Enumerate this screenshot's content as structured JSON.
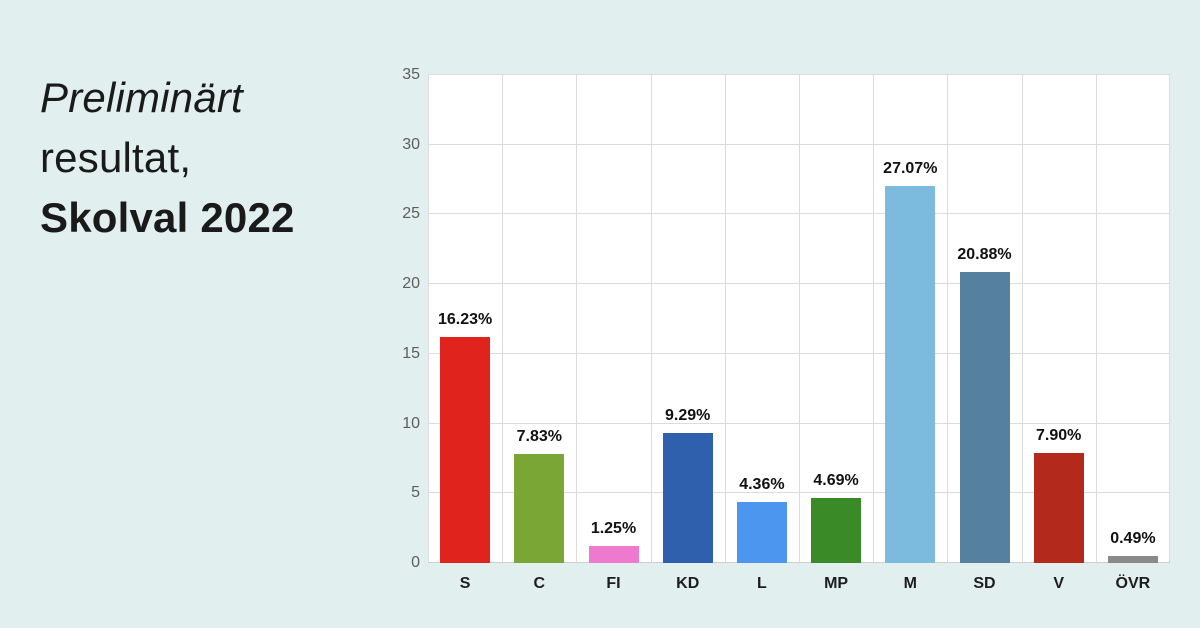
{
  "title": {
    "line1": "Preliminärt",
    "line2": "resultat,",
    "line3": "Skolval 2022"
  },
  "colors": {
    "background": "#e1f0ee",
    "plot_background": "#ffffff",
    "grid": "#dcdcdc",
    "axis_tick_text": "#5d5d5d",
    "value_label_text": "#111111",
    "title_text": "#1a1a1a"
  },
  "chart_data": {
    "type": "bar",
    "title": "Preliminärt resultat, Skolval 2022",
    "categories": [
      "S",
      "C",
      "FI",
      "KD",
      "L",
      "MP",
      "M",
      "SD",
      "V",
      "ÖVR"
    ],
    "values": [
      16.23,
      7.83,
      1.25,
      9.29,
      4.36,
      4.69,
      27.07,
      20.88,
      7.9,
      0.49
    ],
    "value_labels": [
      "16.23%",
      "7.83%",
      "1.25%",
      "9.29%",
      "4.36%",
      "4.69%",
      "27.07%",
      "20.88%",
      "7.90%",
      "0.49%"
    ],
    "bar_colors": [
      "#e0231c",
      "#7aa636",
      "#ee7ad0",
      "#2f60ae",
      "#4d96f0",
      "#3a8a28",
      "#7cbade",
      "#56809f",
      "#b32a1d",
      "#8a8a8a"
    ],
    "xlabel": "",
    "ylabel": "",
    "ylim": [
      0,
      35
    ],
    "yticks": [
      0,
      5,
      10,
      15,
      20,
      25,
      30,
      35
    ],
    "grid": true,
    "legend": false
  }
}
